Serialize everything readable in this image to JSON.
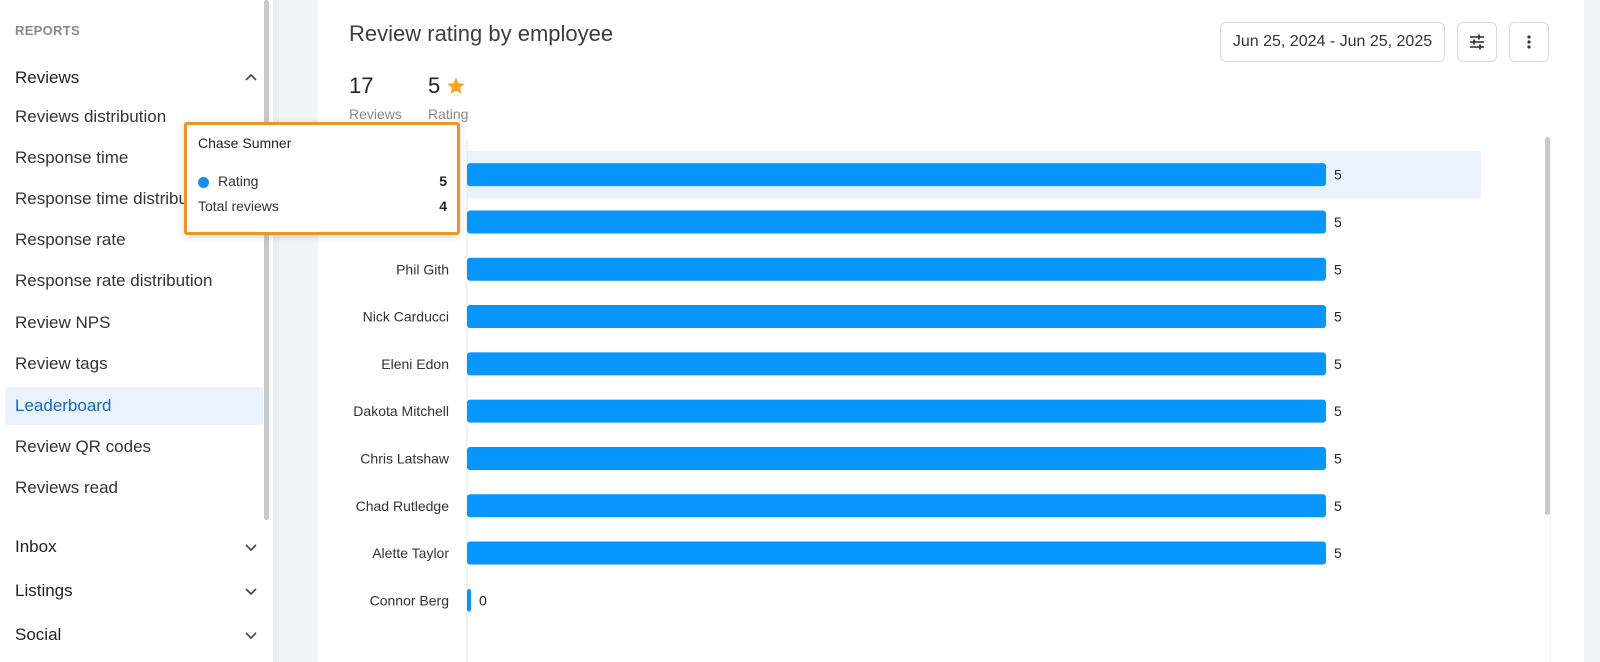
{
  "sidebar": {
    "section_title": "REPORTS",
    "groups": [
      {
        "label": "Reviews",
        "expanded": true,
        "items": [
          {
            "label": "Reviews distribution"
          },
          {
            "label": "Response time"
          },
          {
            "label": "Response time distribution"
          },
          {
            "label": "Response rate"
          },
          {
            "label": "Response rate distribution"
          },
          {
            "label": "Review NPS"
          },
          {
            "label": "Review tags"
          },
          {
            "label": "Leaderboard",
            "active": true
          },
          {
            "label": "Review QR codes"
          },
          {
            "label": "Reviews read"
          }
        ]
      },
      {
        "label": "Inbox",
        "expanded": false
      },
      {
        "label": "Listings",
        "expanded": false
      },
      {
        "label": "Social",
        "expanded": false
      }
    ]
  },
  "card": {
    "title": "Review rating by employee",
    "date_range": "Jun 25, 2024 - Jun 25, 2025",
    "filter_icon": "sliders-icon",
    "more_icon": "more-vertical-icon",
    "stats": {
      "reviews_value": "17",
      "reviews_label": "Reviews",
      "rating_value": "5",
      "rating_label": "Rating",
      "rating_icon": "star-icon"
    }
  },
  "chart_data": {
    "type": "bar",
    "orientation": "horizontal",
    "categories": [
      "",
      "",
      "Phil Gith",
      "Nick Carducci",
      "Eleni Edon",
      "Dakota Mitchell",
      "Chris Latshaw",
      "Chad Rutledge",
      "Alette Taylor",
      "Connor Berg"
    ],
    "values": [
      5,
      5,
      5,
      5,
      5,
      5,
      5,
      5,
      5,
      0
    ],
    "data_labels": [
      "5",
      "5",
      "5",
      "5",
      "5",
      "5",
      "5",
      "5",
      "5",
      "0"
    ],
    "xlim": [
      0,
      5
    ],
    "highlighted_index": 0,
    "colors": {
      "bar": "#0696fc",
      "highlight_band": "#eaf2fd"
    }
  },
  "tooltip": {
    "title": "Chase Sumner",
    "rows": [
      {
        "label": "Rating",
        "value": "5",
        "marker_color": "#1a8cf0"
      },
      {
        "label": "Total reviews",
        "value": "4"
      }
    ]
  }
}
